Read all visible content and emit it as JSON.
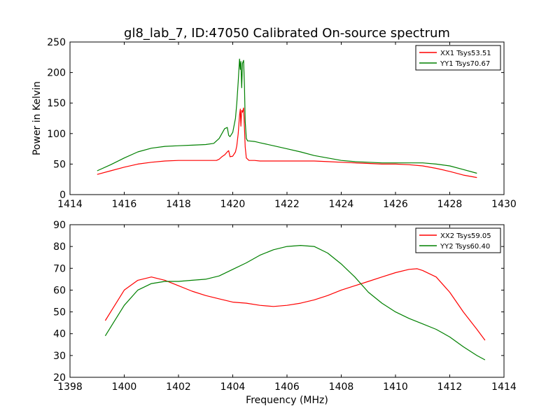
{
  "figure_title": "gl8_lab_7, ID:47050 Calibrated On-source spectrum",
  "chart_data": [
    {
      "type": "line",
      "title": "gl8_lab_7, ID:47050 Calibrated On-source spectrum",
      "xlabel": "",
      "ylabel": "Power in Kelvin",
      "xlim": [
        1414,
        1430
      ],
      "ylim": [
        0,
        250
      ],
      "xticks": [
        "1414",
        "1416",
        "1418",
        "1420",
        "1422",
        "1424",
        "1426",
        "1428",
        "1430"
      ],
      "yticks": [
        "0",
        "50",
        "100",
        "150",
        "200",
        "250"
      ],
      "grid": false,
      "legend_position": "top-right",
      "series": [
        {
          "name": "XX1 Tsys53.51",
          "color": "#ff0000",
          "x": [
            1415.0,
            1415.5,
            1416.0,
            1416.5,
            1417.0,
            1417.5,
            1418.0,
            1418.5,
            1419.0,
            1419.4,
            1419.5,
            1419.6,
            1419.7,
            1419.8,
            1419.85,
            1419.9,
            1420.0,
            1420.1,
            1420.15,
            1420.2,
            1420.25,
            1420.28,
            1420.3,
            1420.33,
            1420.36,
            1420.4,
            1420.43,
            1420.46,
            1420.5,
            1420.55,
            1420.6,
            1420.8,
            1421.0,
            1421.5,
            1422.0,
            1422.5,
            1423.0,
            1423.5,
            1424.0,
            1424.5,
            1425.0,
            1425.5,
            1426.0,
            1426.5,
            1427.0,
            1427.5,
            1428.0,
            1428.5,
            1429.0
          ],
          "y": [
            33,
            39,
            45,
            50,
            53,
            55,
            56,
            56,
            56,
            56,
            58,
            62,
            65,
            70,
            72,
            62,
            63,
            70,
            80,
            100,
            130,
            140,
            112,
            138,
            135,
            142,
            110,
            78,
            60,
            58,
            56,
            56,
            55,
            55,
            55,
            55,
            55,
            54,
            53,
            52,
            51,
            50,
            50,
            49,
            47,
            43,
            38,
            32,
            28
          ]
        },
        {
          "name": "YY1 Tsys70.67",
          "color": "#008000",
          "x": [
            1415.0,
            1415.5,
            1416.0,
            1416.5,
            1417.0,
            1417.5,
            1418.0,
            1418.5,
            1419.0,
            1419.3,
            1419.5,
            1419.6,
            1419.7,
            1419.8,
            1419.85,
            1419.9,
            1420.0,
            1420.1,
            1420.15,
            1420.2,
            1420.25,
            1420.28,
            1420.3,
            1420.33,
            1420.36,
            1420.4,
            1420.43,
            1420.46,
            1420.5,
            1420.55,
            1420.6,
            1420.8,
            1421.0,
            1421.5,
            1422.0,
            1422.5,
            1423.0,
            1423.5,
            1424.0,
            1424.5,
            1425.0,
            1425.5,
            1426.0,
            1426.5,
            1427.0,
            1427.5,
            1428.0,
            1428.5,
            1429.0
          ],
          "y": [
            39,
            49,
            60,
            70,
            76,
            79,
            80,
            81,
            82,
            84,
            92,
            100,
            108,
            110,
            97,
            95,
            102,
            125,
            150,
            185,
            222,
            205,
            218,
            175,
            215,
            220,
            180,
            120,
            92,
            88,
            88,
            87,
            85,
            80,
            75,
            70,
            64,
            60,
            56,
            54,
            53,
            52,
            52,
            52,
            52,
            50,
            47,
            41,
            35
          ]
        }
      ]
    },
    {
      "type": "line",
      "title": "",
      "xlabel": "Frequency (MHz)",
      "ylabel": "",
      "xlim": [
        1398,
        1414
      ],
      "ylim": [
        20,
        90
      ],
      "xticks": [
        "1398",
        "1400",
        "1402",
        "1404",
        "1406",
        "1408",
        "1410",
        "1412",
        "1414"
      ],
      "yticks": [
        "20",
        "30",
        "40",
        "50",
        "60",
        "70",
        "80",
        "90"
      ],
      "grid": false,
      "legend_position": "top-right",
      "series": [
        {
          "name": "XX2 Tsys59.05",
          "color": "#ff0000",
          "x": [
            1399.3,
            1399.6,
            1400.0,
            1400.5,
            1401.0,
            1401.5,
            1402.0,
            1402.5,
            1403.0,
            1403.5,
            1404.0,
            1404.5,
            1405.0,
            1405.5,
            1406.0,
            1406.5,
            1407.0,
            1407.5,
            1408.0,
            1408.5,
            1409.0,
            1409.5,
            1410.0,
            1410.5,
            1410.8,
            1411.0,
            1411.5,
            1412.0,
            1412.5,
            1413.0,
            1413.3
          ],
          "y": [
            46,
            52,
            60,
            64.5,
            66,
            64.5,
            62,
            59.5,
            57.5,
            56,
            54.5,
            54,
            53,
            52.5,
            53,
            54,
            55.5,
            57.5,
            60,
            62,
            64,
            66,
            68,
            69.5,
            69.8,
            69,
            66,
            59,
            50,
            42,
            37
          ]
        },
        {
          "name": "YY2 Tsys60.40",
          "color": "#008000",
          "x": [
            1399.3,
            1399.6,
            1400.0,
            1400.5,
            1401.0,
            1401.5,
            1402.0,
            1402.5,
            1403.0,
            1403.5,
            1404.0,
            1404.5,
            1405.0,
            1405.5,
            1406.0,
            1406.5,
            1407.0,
            1407.5,
            1408.0,
            1408.5,
            1409.0,
            1409.5,
            1410.0,
            1410.5,
            1411.0,
            1411.5,
            1412.0,
            1412.5,
            1413.0,
            1413.3
          ],
          "y": [
            39,
            45,
            53,
            60,
            63,
            64,
            64,
            64.5,
            65,
            66.5,
            69.5,
            72.5,
            76,
            78.5,
            80,
            80.5,
            80,
            77,
            72,
            66,
            59,
            54,
            50,
            47,
            44.5,
            42,
            38.5,
            34,
            30,
            28
          ]
        }
      ]
    }
  ]
}
